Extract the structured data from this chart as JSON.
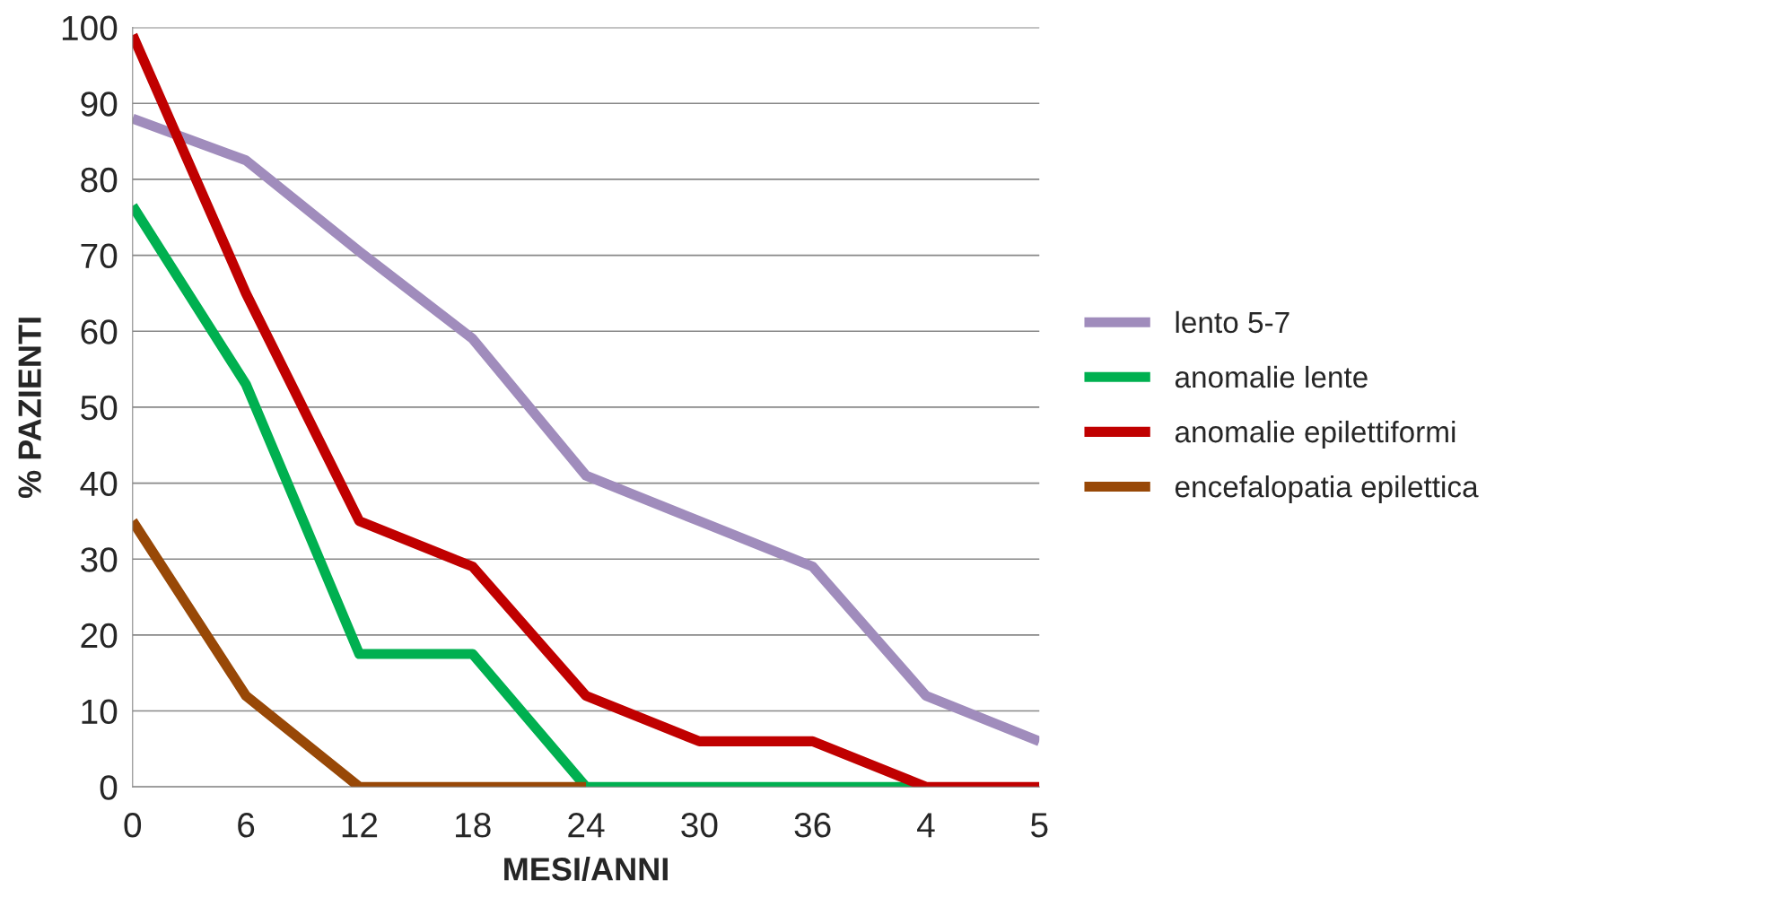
{
  "chart_data": {
    "type": "line",
    "xlabel": "MESI/ANNI",
    "ylabel": "% PAZIENTI",
    "categories": [
      "0",
      "6",
      "12",
      "18",
      "24",
      "30",
      "36",
      "4",
      "5"
    ],
    "series": [
      {
        "name": "lento 5-7",
        "color": "#a08cbc",
        "values": [
          88,
          82.5,
          70.5,
          59,
          41,
          35,
          29,
          12,
          6
        ]
      },
      {
        "name": "anomalie lente",
        "color": "#00b050",
        "values": [
          76.5,
          53,
          17.5,
          17.5,
          0,
          0,
          0,
          0,
          null
        ]
      },
      {
        "name": "anomalie epilettiformi",
        "color": "#c00000",
        "values": [
          99,
          65,
          35,
          29,
          12,
          6,
          6,
          0,
          0
        ]
      },
      {
        "name": "encefalopatia epilettica",
        "color": "#984807",
        "values": [
          35,
          12,
          0,
          0,
          0,
          null,
          null,
          null,
          null
        ]
      }
    ],
    "ylim": [
      0,
      100
    ],
    "yticks": [
      0,
      10,
      20,
      30,
      40,
      50,
      60,
      70,
      80,
      90,
      100
    ],
    "grid": "y",
    "legend": "right",
    "marker": "none",
    "line_style": "solid"
  }
}
